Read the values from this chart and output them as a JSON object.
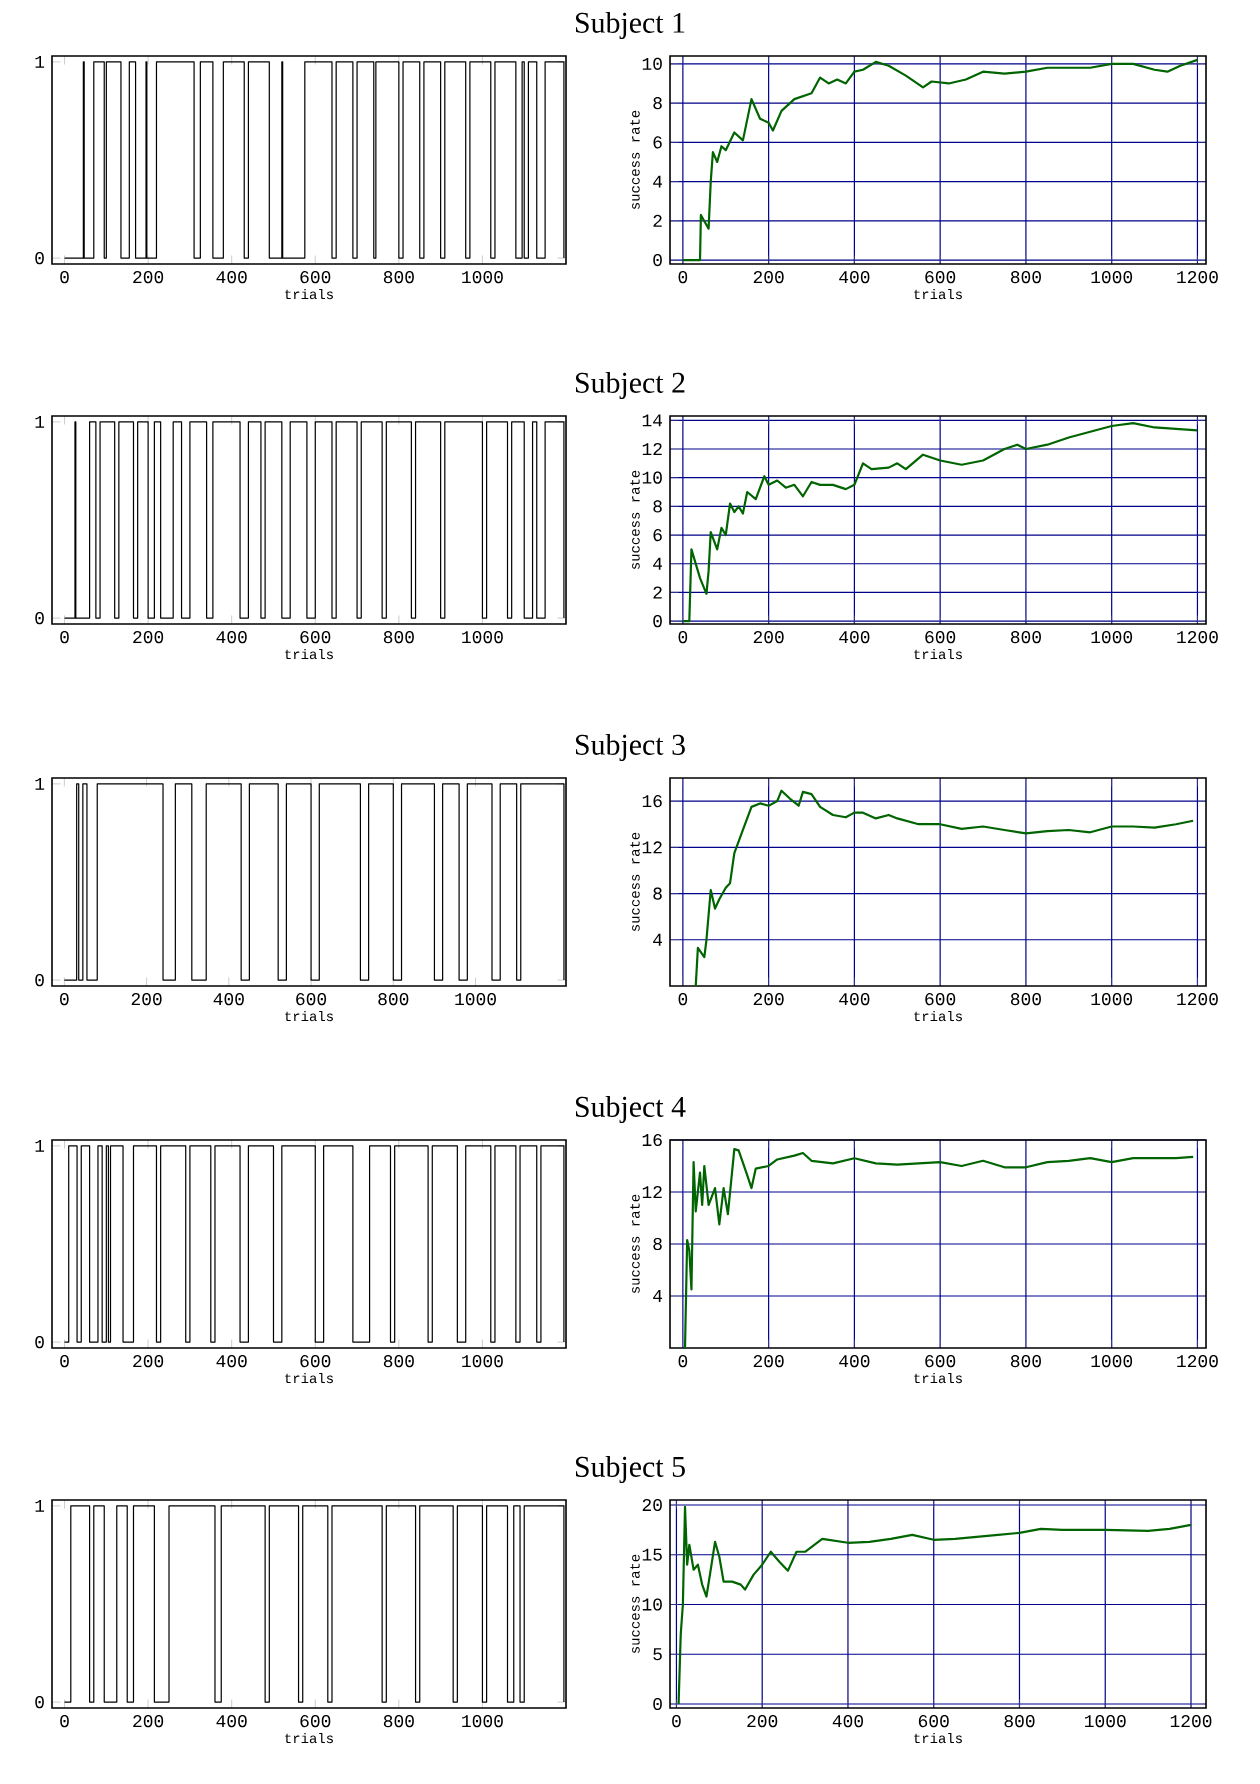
{
  "chart_data": [
    {
      "type": "step",
      "title": "Subject 1",
      "xlabel": "trials",
      "color": "#000000",
      "xlim": [
        -30,
        1200
      ],
      "xticks": [
        0,
        200,
        400,
        600,
        800,
        1000
      ],
      "ylim": [
        -0.03,
        1.03
      ],
      "yticks": [
        0,
        1
      ],
      "x": [
        0,
        45,
        47,
        70,
        95,
        100,
        135,
        155,
        170,
        195,
        197,
        220,
        310,
        325,
        355,
        380,
        430,
        440,
        490,
        520,
        522,
        575,
        640,
        650,
        690,
        700,
        740,
        745,
        800,
        810,
        850,
        860,
        900,
        910,
        960,
        970,
        1020,
        1030,
        1080,
        1095,
        1100,
        1110,
        1130,
        1150,
        1195
      ],
      "values": [
        0,
        1,
        0,
        1,
        0,
        1,
        0,
        1,
        0,
        1,
        0,
        1,
        0,
        1,
        0,
        1,
        0,
        1,
        0,
        1,
        0,
        1,
        0,
        1,
        0,
        1,
        0,
        1,
        0,
        1,
        0,
        1,
        0,
        1,
        0,
        1,
        0,
        1,
        0,
        1,
        0,
        1,
        0,
        1,
        0
      ]
    },
    {
      "type": "line",
      "xlabel": "trials",
      "ylabel": "success rate",
      "color": "#006400",
      "grid": true,
      "xlim": [
        -30,
        1220
      ],
      "xticks": [
        0,
        200,
        400,
        600,
        800,
        1000,
        1200
      ],
      "ylim": [
        -0.2,
        10.4
      ],
      "yticks": [
        0,
        2,
        4,
        6,
        8,
        10
      ],
      "x": [
        0,
        40,
        42,
        60,
        65,
        70,
        80,
        90,
        100,
        120,
        140,
        160,
        180,
        200,
        210,
        230,
        260,
        300,
        320,
        340,
        360,
        380,
        400,
        420,
        450,
        480,
        520,
        560,
        580,
        620,
        660,
        700,
        750,
        800,
        850,
        900,
        950,
        1000,
        1050,
        1100,
        1130,
        1160,
        1200
      ],
      "values": [
        0,
        0,
        2.3,
        1.6,
        4,
        5.5,
        5,
        5.8,
        5.6,
        6.5,
        6.1,
        8.2,
        7.2,
        7,
        6.6,
        7.6,
        8.2,
        8.5,
        9.3,
        9,
        9.2,
        9,
        9.6,
        9.7,
        10.1,
        9.9,
        9.4,
        8.8,
        9.1,
        9,
        9.2,
        9.6,
        9.5,
        9.6,
        9.8,
        9.8,
        9.8,
        10,
        10,
        9.7,
        9.6,
        9.9,
        10.2
      ]
    },
    {
      "type": "step",
      "title": "Subject 2",
      "xlabel": "trials",
      "color": "#000000",
      "xlim": [
        -30,
        1200
      ],
      "xticks": [
        0,
        200,
        400,
        600,
        800,
        1000
      ],
      "ylim": [
        -0.03,
        1.03
      ],
      "yticks": [
        0,
        1
      ],
      "x": [
        0,
        25,
        27,
        60,
        75,
        85,
        120,
        130,
        165,
        175,
        200,
        215,
        230,
        260,
        280,
        300,
        340,
        355,
        420,
        440,
        470,
        480,
        520,
        540,
        580,
        600,
        640,
        650,
        700,
        710,
        760,
        770,
        830,
        840,
        900,
        910,
        1000,
        1010,
        1060,
        1070,
        1100,
        1120,
        1130,
        1150,
        1195
      ],
      "values": [
        0,
        1,
        0,
        1,
        0,
        1,
        0,
        1,
        0,
        1,
        0,
        1,
        0,
        1,
        0,
        1,
        0,
        1,
        0,
        1,
        0,
        1,
        0,
        1,
        0,
        1,
        0,
        1,
        0,
        1,
        0,
        1,
        0,
        1,
        0,
        1,
        0,
        1,
        0,
        1,
        0,
        1,
        0,
        1,
        0
      ]
    },
    {
      "type": "line",
      "xlabel": "trials",
      "ylabel": "success rate",
      "color": "#006400",
      "grid": true,
      "xlim": [
        -30,
        1220
      ],
      "xticks": [
        0,
        200,
        400,
        600,
        800,
        1000,
        1200
      ],
      "ylim": [
        -0.2,
        14.3
      ],
      "yticks": [
        0,
        2,
        4,
        6,
        8,
        10,
        12,
        14
      ],
      "x": [
        0,
        15,
        20,
        40,
        55,
        60,
        65,
        80,
        90,
        100,
        110,
        120,
        130,
        140,
        150,
        170,
        190,
        200,
        220,
        240,
        260,
        280,
        300,
        320,
        350,
        380,
        400,
        420,
        440,
        480,
        500,
        520,
        560,
        600,
        650,
        700,
        750,
        780,
        800,
        850,
        900,
        950,
        1000,
        1050,
        1100,
        1150,
        1200
      ],
      "values": [
        0,
        0,
        5,
        3,
        1.9,
        3.5,
        6.2,
        5,
        6.5,
        6,
        8.2,
        7.6,
        8,
        7.5,
        9,
        8.5,
        10.1,
        9.5,
        9.8,
        9.3,
        9.5,
        8.7,
        9.7,
        9.5,
        9.5,
        9.2,
        9.5,
        11,
        10.6,
        10.7,
        11,
        10.6,
        11.6,
        11.2,
        10.9,
        11.2,
        12,
        12.3,
        12,
        12.3,
        12.8,
        13.2,
        13.6,
        13.8,
        13.5,
        13.4,
        13.3
      ]
    },
    {
      "type": "step",
      "title": "Subject 3",
      "xlabel": "trials",
      "color": "#000000",
      "xlim": [
        -30,
        1220
      ],
      "xticks": [
        0,
        200,
        400,
        600,
        800,
        1000
      ],
      "ylim": [
        -0.03,
        1.03
      ],
      "yticks": [
        0,
        1
      ],
      "x": [
        0,
        30,
        35,
        45,
        55,
        80,
        240,
        270,
        310,
        345,
        430,
        450,
        520,
        540,
        600,
        620,
        720,
        740,
        800,
        820,
        900,
        920,
        960,
        980,
        1040,
        1060,
        1100,
        1110,
        1215
      ],
      "values": [
        0,
        1,
        0,
        1,
        0,
        1,
        0,
        1,
        0,
        1,
        0,
        1,
        0,
        1,
        0,
        1,
        0,
        1,
        0,
        1,
        0,
        1,
        0,
        1,
        0,
        1,
        0,
        1,
        0
      ]
    },
    {
      "type": "line",
      "xlabel": "trials",
      "ylabel": "success rate",
      "color": "#006400",
      "grid": true,
      "xlim": [
        -30,
        1220
      ],
      "xticks": [
        0,
        200,
        400,
        600,
        800,
        1000,
        1200
      ],
      "ylim": [
        0,
        18
      ],
      "yticks": [
        4,
        8,
        12,
        16
      ],
      "x": [
        25,
        30,
        35,
        50,
        55,
        65,
        75,
        85,
        100,
        110,
        120,
        140,
        160,
        180,
        200,
        220,
        230,
        250,
        270,
        280,
        300,
        320,
        350,
        380,
        400,
        420,
        450,
        480,
        500,
        550,
        600,
        650,
        700,
        750,
        800,
        850,
        900,
        950,
        1000,
        1050,
        1100,
        1150,
        1190
      ],
      "values": [
        0,
        0,
        3.3,
        2.5,
        4,
        8.3,
        6.7,
        7.5,
        8.5,
        8.9,
        11.5,
        13.5,
        15.5,
        15.8,
        15.6,
        16,
        16.9,
        16.2,
        15.6,
        16.8,
        16.6,
        15.5,
        14.8,
        14.6,
        15,
        15,
        14.5,
        14.8,
        14.5,
        14,
        14,
        13.6,
        13.8,
        13.5,
        13.2,
        13.4,
        13.5,
        13.3,
        13.8,
        13.8,
        13.7,
        14,
        14.3
      ]
    },
    {
      "type": "step",
      "title": "Subject 4",
      "xlabel": "trials",
      "color": "#000000",
      "xlim": [
        -30,
        1200
      ],
      "xticks": [
        0,
        200,
        400,
        600,
        800,
        1000
      ],
      "ylim": [
        -0.03,
        1.03
      ],
      "yticks": [
        0,
        1
      ],
      "x": [
        0,
        10,
        30,
        40,
        60,
        80,
        90,
        100,
        105,
        110,
        140,
        165,
        220,
        230,
        290,
        300,
        350,
        360,
        420,
        440,
        500,
        520,
        600,
        620,
        690,
        730,
        780,
        790,
        870,
        880,
        940,
        960,
        1020,
        1030,
        1080,
        1090,
        1130,
        1140,
        1195
      ],
      "values": [
        0,
        1,
        0,
        1,
        0,
        1,
        0,
        1,
        0,
        1,
        0,
        1,
        0,
        1,
        0,
        1,
        0,
        1,
        0,
        1,
        0,
        1,
        0,
        1,
        0,
        1,
        0,
        1,
        0,
        1,
        0,
        1,
        0,
        1,
        0,
        1,
        0,
        1,
        0
      ]
    },
    {
      "type": "line",
      "xlabel": "trials",
      "ylabel": "success rate",
      "color": "#006400",
      "grid": true,
      "xlim": [
        -30,
        1220
      ],
      "xticks": [
        0,
        200,
        400,
        600,
        800,
        1000,
        1200
      ],
      "ylim": [
        0,
        16
      ],
      "yticks": [
        4,
        8,
        12,
        16
      ],
      "x": [
        5,
        10,
        15,
        20,
        25,
        30,
        40,
        45,
        50,
        60,
        75,
        85,
        95,
        105,
        120,
        130,
        150,
        160,
        170,
        200,
        220,
        260,
        280,
        300,
        350,
        400,
        450,
        500,
        600,
        650,
        700,
        750,
        800,
        850,
        900,
        950,
        1000,
        1050,
        1100,
        1150,
        1190
      ],
      "values": [
        0,
        8.3,
        7.5,
        4.5,
        14.3,
        10.5,
        13.5,
        11,
        14,
        11,
        12.3,
        9.5,
        12.3,
        10.3,
        15.3,
        15.2,
        13.3,
        12.3,
        13.8,
        14,
        14.5,
        14.8,
        15,
        14.4,
        14.2,
        14.6,
        14.2,
        14.1,
        14.3,
        14,
        14.4,
        13.9,
        13.9,
        14.3,
        14.4,
        14.6,
        14.3,
        14.6,
        14.6,
        14.6,
        14.7
      ]
    },
    {
      "type": "step",
      "title": "Subject 5",
      "xlabel": "trials",
      "color": "#000000",
      "xlim": [
        -30,
        1200
      ],
      "xticks": [
        0,
        200,
        400,
        600,
        800,
        1000
      ],
      "ylim": [
        -0.03,
        1.03
      ],
      "yticks": [
        0,
        1
      ],
      "x": [
        0,
        15,
        60,
        70,
        95,
        125,
        150,
        165,
        215,
        250,
        360,
        375,
        480,
        490,
        560,
        570,
        630,
        640,
        760,
        770,
        840,
        850,
        930,
        940,
        1000,
        1010,
        1060,
        1075,
        1090,
        1100,
        1195
      ],
      "values": [
        0,
        1,
        0,
        1,
        0,
        1,
        0,
        1,
        0,
        1,
        0,
        1,
        0,
        1,
        0,
        1,
        0,
        1,
        0,
        1,
        0,
        1,
        0,
        1,
        0,
        1,
        0,
        1,
        0,
        1,
        0
      ]
    },
    {
      "type": "line",
      "xlabel": "trials",
      "ylabel": "success rate",
      "color": "#006400",
      "grid": true,
      "xlim": [
        -15,
        1235
      ],
      "xticks": [
        0,
        200,
        400,
        600,
        800,
        1000,
        1200
      ],
      "ylim": [
        -0.4,
        20.5
      ],
      "yticks": [
        0,
        5,
        10,
        15,
        20
      ],
      "x": [
        5,
        10,
        15,
        20,
        25,
        30,
        40,
        50,
        60,
        70,
        80,
        90,
        100,
        110,
        130,
        150,
        160,
        180,
        200,
        220,
        240,
        260,
        280,
        300,
        340,
        400,
        450,
        500,
        550,
        600,
        650,
        700,
        750,
        800,
        850,
        900,
        1000,
        1100,
        1150,
        1200
      ],
      "values": [
        0,
        7,
        10,
        19.8,
        14,
        16,
        13.5,
        14,
        12,
        10.8,
        13.5,
        16.3,
        14.8,
        12.3,
        12.3,
        12,
        11.5,
        13,
        14,
        15.3,
        14.3,
        13.4,
        15.3,
        15.3,
        16.6,
        16.2,
        16.3,
        16.6,
        17,
        16.5,
        16.6,
        16.8,
        17,
        17.2,
        17.6,
        17.5,
        17.5,
        17.4,
        17.6,
        18
      ]
    }
  ]
}
